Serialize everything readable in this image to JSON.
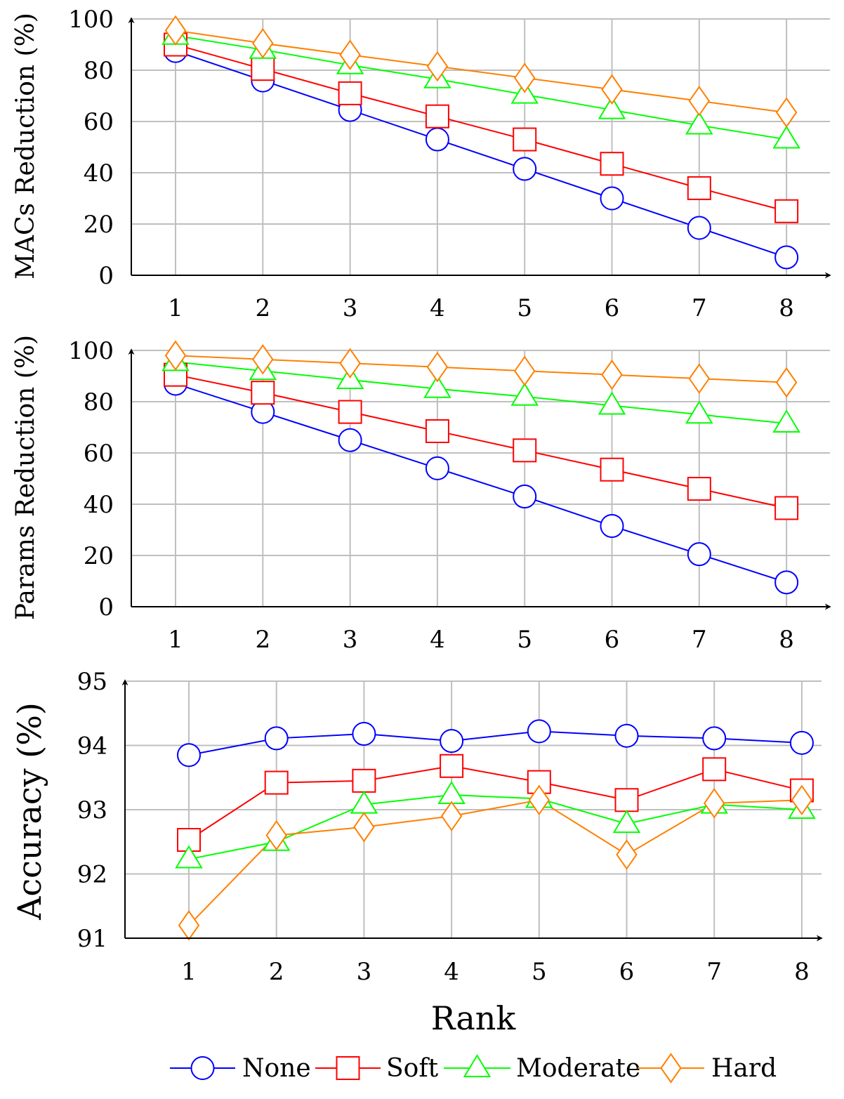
{
  "chart_data": [
    {
      "type": "line",
      "title": "",
      "xlabel": "",
      "ylabel": "MACs Reduction (%)",
      "x": [
        1,
        2,
        3,
        4,
        5,
        6,
        7,
        8
      ],
      "xticks": [
        "1",
        "2",
        "3",
        "4",
        "5",
        "6",
        "7",
        "8"
      ],
      "yticks": [
        "0",
        "20",
        "40",
        "60",
        "80",
        "100"
      ],
      "ylim": [
        0,
        100
      ],
      "grid": true,
      "series": [
        {
          "name": "None",
          "values": [
            87.5,
            76,
            64.5,
            53,
            41.5,
            30,
            18.5,
            7
          ]
        },
        {
          "name": "Soft",
          "values": [
            90,
            80.5,
            71,
            62,
            53,
            43.5,
            34,
            25
          ]
        },
        {
          "name": "Moderate",
          "values": [
            93.5,
            88,
            82,
            76.5,
            70.5,
            64.5,
            58.5,
            53
          ]
        },
        {
          "name": "Hard",
          "values": [
            95.5,
            90.5,
            86,
            81.5,
            77,
            72.5,
            68,
            63.5
          ]
        }
      ]
    },
    {
      "type": "line",
      "title": "",
      "xlabel": "",
      "ylabel": "Params Reduction (%)",
      "x": [
        1,
        2,
        3,
        4,
        5,
        6,
        7,
        8
      ],
      "xticks": [
        "1",
        "2",
        "3",
        "4",
        "5",
        "6",
        "7",
        "8"
      ],
      "yticks": [
        "0",
        "20",
        "40",
        "60",
        "80",
        "100"
      ],
      "ylim": [
        0,
        100
      ],
      "grid": true,
      "series": [
        {
          "name": "None",
          "values": [
            87,
            76,
            65,
            54,
            43,
            31.5,
            20.5,
            9.5
          ]
        },
        {
          "name": "Soft",
          "values": [
            90.5,
            83.5,
            76,
            68.5,
            61,
            53.5,
            46,
            38.5
          ]
        },
        {
          "name": "Moderate",
          "values": [
            95.5,
            92,
            88.5,
            85,
            82,
            78.5,
            75,
            71.5
          ]
        },
        {
          "name": "Hard",
          "values": [
            98,
            96.5,
            95,
            93.5,
            92,
            90.5,
            89,
            87.5
          ]
        }
      ]
    },
    {
      "type": "line",
      "title": "",
      "xlabel": "Rank",
      "ylabel": "Accuracy (%)",
      "x": [
        1,
        2,
        3,
        4,
        5,
        6,
        7,
        8
      ],
      "xticks": [
        "1",
        "2",
        "3",
        "4",
        "5",
        "6",
        "7",
        "8"
      ],
      "yticks": [
        "91",
        "92",
        "93",
        "94",
        "95"
      ],
      "ylim": [
        91,
        95
      ],
      "grid": true,
      "series": [
        {
          "name": "None",
          "values": [
            93.85,
            94.11,
            94.18,
            94.07,
            94.22,
            94.15,
            94.11,
            94.04
          ]
        },
        {
          "name": "Soft",
          "values": [
            92.53,
            93.42,
            93.45,
            93.68,
            93.43,
            93.15,
            93.63,
            93.3
          ]
        },
        {
          "name": "Moderate",
          "values": [
            92.23,
            92.5,
            93.08,
            93.23,
            93.17,
            92.78,
            93.08,
            93
          ]
        },
        {
          "name": "Hard",
          "values": [
            91.2,
            92.6,
            92.73,
            92.9,
            93.15,
            92.3,
            93.1,
            93.15
          ]
        }
      ]
    }
  ],
  "legend": {
    "placement": "bottom-center",
    "entries": [
      {
        "name": "None",
        "color": "#0000ff",
        "marker": "circle"
      },
      {
        "name": "Soft",
        "color": "#ff0000",
        "marker": "square"
      },
      {
        "name": "Moderate",
        "color": "#00ff00",
        "marker": "triangle"
      },
      {
        "name": "Hard",
        "color": "#ff8000",
        "marker": "diamond"
      }
    ]
  },
  "colors": {
    "grid": "#bfbfbf",
    "axis": "#000000"
  }
}
